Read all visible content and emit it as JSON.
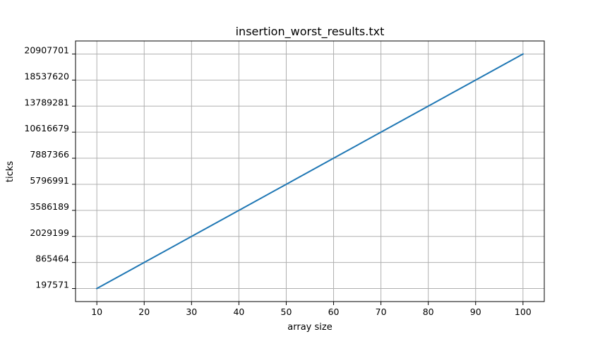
{
  "chart_data": {
    "type": "line",
    "title": "insertion_worst_results.txt",
    "xlabel": "array size",
    "ylabel": "ticks",
    "grid": true,
    "x_ticks": [
      10,
      20,
      30,
      40,
      50,
      60,
      70,
      80,
      90,
      100
    ],
    "y_tick_labels": [
      "197571",
      "865464",
      "2029199",
      "3586189",
      "5796991",
      "7887366",
      "10616679",
      "13789281",
      "18537620",
      "20907701"
    ],
    "series": [
      {
        "color": "#1f77b4",
        "x": [
          10,
          20,
          30,
          40,
          50,
          60,
          70,
          80,
          90,
          100
        ],
        "y": [
          "197571",
          "865464",
          "2029199",
          "3586189",
          "5796991",
          "7887366",
          "10616679",
          "13789281",
          "18537620",
          "20907701"
        ]
      }
    ]
  }
}
